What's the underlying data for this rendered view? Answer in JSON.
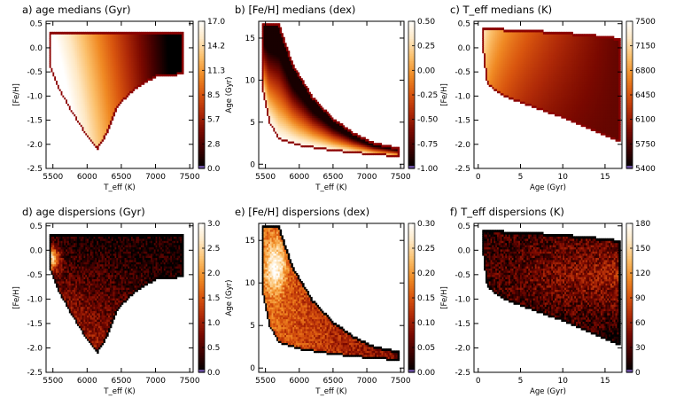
{
  "figure": {
    "colormap": [
      "#000000",
      "#3d0000",
      "#7a0900",
      "#b02a08",
      "#d9560f",
      "#f08a24",
      "#fbbf6a",
      "#fee8c4",
      "#ffffff"
    ],
    "border_color": "#8b0000",
    "underflow_color": "#6a4ea0"
  },
  "chart_data": [
    {
      "id": "a",
      "panel_label": "a)",
      "type": "heatmap",
      "title": "age medians (Gyr)",
      "xlabel": "T_eff (K)",
      "ylabel": "[Fe/H]",
      "xlim": [
        5400,
        7550
      ],
      "ylim": [
        -2.5,
        0.55
      ],
      "xticks": [
        "5500",
        "6000",
        "6500",
        "7000",
        "7500"
      ],
      "xtick_values": [
        5500,
        6000,
        6500,
        7000,
        7500
      ],
      "yticks": [
        "-2.5",
        "-2.0",
        "-1.5",
        "-1.0",
        "-0.5",
        "0.0",
        "0.5"
      ],
      "ytick_values": [
        -2.5,
        -2.0,
        -1.5,
        -1.0,
        -0.5,
        0.0,
        0.5
      ],
      "colorbar": {
        "ticks": [
          "17.0",
          "14.2",
          "11.3",
          "8.5",
          "5.7",
          "2.8",
          "0.0"
        ],
        "min": 0.0,
        "max": 17.0
      }
    },
    {
      "id": "b",
      "panel_label": "b)",
      "type": "heatmap",
      "title": "[Fe/H] medians (dex)",
      "xlabel": "T_eff (K)",
      "ylabel": "Age (Gyr)",
      "xlim": [
        5400,
        7550
      ],
      "ylim": [
        -0.5,
        17
      ],
      "xticks": [
        "5500",
        "6000",
        "6500",
        "7000",
        "7500"
      ],
      "xtick_values": [
        5500,
        6000,
        6500,
        7000,
        7500
      ],
      "yticks": [
        "0",
        "5",
        "10",
        "15"
      ],
      "ytick_values": [
        0,
        5,
        10,
        15
      ],
      "colorbar": {
        "ticks": [
          "0.50",
          "0.25",
          "0.00",
          "-0.25",
          "-0.50",
          "-0.75",
          "-1.00"
        ],
        "min": -1.0,
        "max": 0.5
      }
    },
    {
      "id": "c",
      "panel_label": "c)",
      "type": "heatmap",
      "title": "T_eff medians (K)",
      "xlabel": "Age (Gyr)",
      "ylabel": "[Fe/H]",
      "xlim": [
        -0.5,
        17
      ],
      "ylim": [
        -2.5,
        0.55
      ],
      "xticks": [
        "0",
        "5",
        "10",
        "15"
      ],
      "xtick_values": [
        0,
        5,
        10,
        15
      ],
      "yticks": [
        "-2.5",
        "-2.0",
        "-1.5",
        "-1.0",
        "-0.5",
        "0.0",
        "0.5"
      ],
      "ytick_values": [
        -2.5,
        -2.0,
        -1.5,
        -1.0,
        -0.5,
        0.0,
        0.5
      ],
      "colorbar": {
        "ticks": [
          "7500",
          "7150",
          "6800",
          "6450",
          "6100",
          "5750",
          "5400"
        ],
        "min": 5400,
        "max": 7500
      }
    },
    {
      "id": "d",
      "panel_label": "d)",
      "type": "heatmap",
      "title": "age dispersions (Gyr)",
      "xlabel": "T_eff (K)",
      "ylabel": "[Fe/H]",
      "xlim": [
        5400,
        7550
      ],
      "ylim": [
        -2.5,
        0.55
      ],
      "xticks": [
        "5500",
        "6000",
        "6500",
        "7000",
        "7500"
      ],
      "xtick_values": [
        5500,
        6000,
        6500,
        7000,
        7500
      ],
      "yticks": [
        "-2.5",
        "-2.0",
        "-1.5",
        "-1.0",
        "-0.5",
        "0.0",
        "0.5"
      ],
      "ytick_values": [
        -2.5,
        -2.0,
        -1.5,
        -1.0,
        -0.5,
        0.0,
        0.5
      ],
      "colorbar": {
        "ticks": [
          "3.0",
          "2.5",
          "2.0",
          "1.5",
          "1.0",
          "0.5",
          "0.0"
        ],
        "min": 0.0,
        "max": 3.0
      }
    },
    {
      "id": "e",
      "panel_label": "e)",
      "type": "heatmap",
      "title": "[Fe/H] dispersions (dex)",
      "xlabel": "T_eff (K)",
      "ylabel": "Age (Gyr)",
      "xlim": [
        5400,
        7550
      ],
      "ylim": [
        -0.5,
        17
      ],
      "xticks": [
        "5500",
        "6000",
        "6500",
        "7000",
        "7500"
      ],
      "xtick_values": [
        5500,
        6000,
        6500,
        7000,
        7500
      ],
      "yticks": [
        "0",
        "5",
        "10",
        "15"
      ],
      "ytick_values": [
        0,
        5,
        10,
        15
      ],
      "colorbar": {
        "ticks": [
          "0.30",
          "0.25",
          "0.20",
          "0.15",
          "0.10",
          "0.05",
          "0.00"
        ],
        "min": 0.0,
        "max": 0.3
      }
    },
    {
      "id": "f",
      "panel_label": "f)",
      "type": "heatmap",
      "title": "T_eff dispersions (K)",
      "xlabel": "Age (Gyr)",
      "ylabel": "[Fe/H]",
      "xlim": [
        -0.5,
        17
      ],
      "ylim": [
        -2.5,
        0.55
      ],
      "xticks": [
        "0",
        "5",
        "10",
        "15"
      ],
      "xtick_values": [
        0,
        5,
        10,
        15
      ],
      "yticks": [
        "-2.5",
        "-2.0",
        "-1.5",
        "-1.0",
        "-0.5",
        "0.0",
        "0.5"
      ],
      "ytick_values": [
        -2.5,
        -2.0,
        -1.5,
        -1.0,
        -0.5,
        0.0,
        0.5
      ],
      "colorbar": {
        "ticks": [
          "180",
          "150",
          "120",
          "90",
          "60",
          "30",
          "0"
        ],
        "min": 0,
        "max": 180
      }
    }
  ]
}
